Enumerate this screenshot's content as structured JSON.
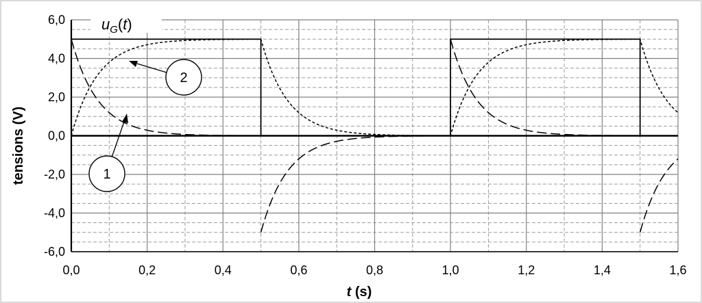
{
  "chart_data": {
    "type": "line",
    "xlabel_main": "t",
    "xlabel_unit": " (s)",
    "ylabel": "tensions (V)",
    "xlim": [
      0,
      1.6
    ],
    "ylim": [
      -6,
      6
    ],
    "x_ticks": [
      "0,0",
      "0,2",
      "0,4",
      "0,6",
      "0,8",
      "1,0",
      "1,2",
      "1,4",
      "1,6"
    ],
    "y_ticks": [
      "6,0",
      "4,0",
      "2,0",
      "0,0",
      "-2,0",
      "-4,0",
      "-6,0"
    ],
    "grid": true,
    "annotations": {
      "ug_main": "u",
      "ug_sub": "G",
      "ug_open": "(",
      "ug_var": "t",
      "ug_close": ")",
      "callout_1": "1",
      "callout_2": "2"
    },
    "period_s": 1.0,
    "tau_s": 0.07,
    "amplitude_V": 5.0,
    "series": [
      {
        "key": "ug",
        "style": "solid",
        "x": [
          0,
          0.5,
          0.5,
          1.0,
          1.0,
          1.5,
          1.5,
          1.6
        ],
        "y": [
          5,
          5,
          0,
          0,
          5,
          5,
          0,
          0
        ]
      },
      {
        "key": "curve1",
        "style": "long-dash",
        "x": [
          0,
          0.05,
          0.1,
          0.15,
          0.2,
          0.3,
          0.4,
          0.5,
          0.5,
          0.55,
          0.6,
          0.7,
          0.8,
          0.9,
          1.0,
          1.0,
          1.05,
          1.1,
          1.2,
          1.3,
          1.4,
          1.5,
          1.5,
          1.55,
          1.6
        ],
        "y": [
          5,
          2.45,
          1.2,
          0.59,
          0.29,
          0.07,
          0.02,
          0,
          -5,
          -2.45,
          -1.2,
          -0.29,
          -0.07,
          -0.02,
          0,
          5,
          2.45,
          1.2,
          0.29,
          0.07,
          0.02,
          0,
          -5,
          -2.45,
          -1.2
        ]
      },
      {
        "key": "curve2",
        "style": "short-dash",
        "x": [
          0,
          0.05,
          0.1,
          0.15,
          0.2,
          0.3,
          0.4,
          0.5,
          0.55,
          0.6,
          0.7,
          0.8,
          0.9,
          1.0,
          1.05,
          1.1,
          1.2,
          1.3,
          1.4,
          1.5,
          1.55,
          1.6
        ],
        "y": [
          0,
          2.55,
          3.8,
          4.41,
          4.71,
          4.93,
          4.98,
          5,
          2.45,
          1.2,
          0.29,
          0.07,
          0.02,
          0,
          2.55,
          3.8,
          4.71,
          4.93,
          4.98,
          5,
          2.45,
          1.2
        ]
      }
    ]
  }
}
